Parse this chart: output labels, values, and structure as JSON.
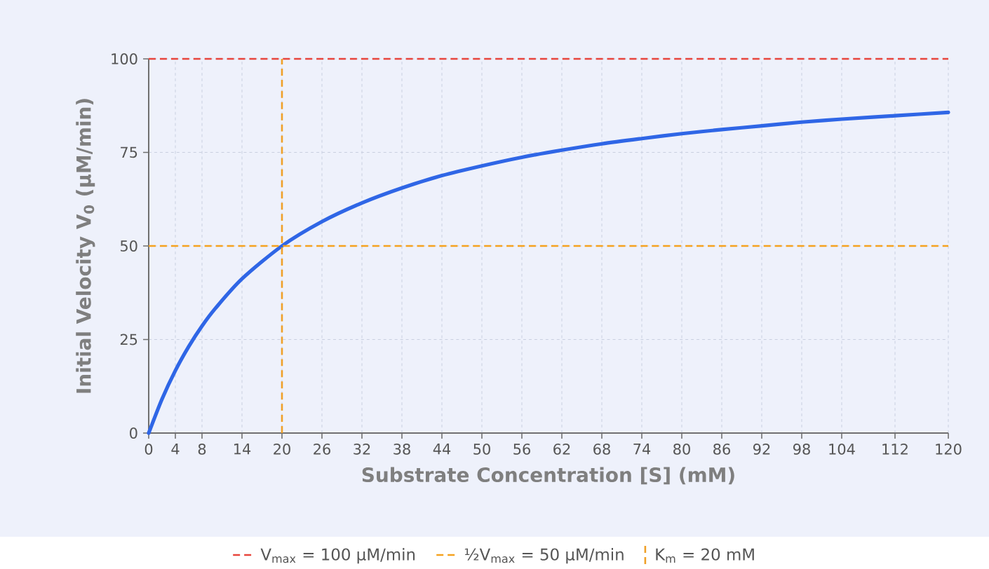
{
  "chart_data": {
    "type": "line",
    "xlabel": "Substrate Concentration [S] (mM)",
    "ylabel": "Initial Velocity V$_{0}$ (µM/min)",
    "x": [
      0,
      2,
      4,
      6,
      8,
      10,
      14,
      20,
      26,
      32,
      38,
      44,
      50,
      56,
      62,
      68,
      74,
      80,
      86,
      92,
      98,
      104,
      112,
      120
    ],
    "series": [
      {
        "color": "#2f66e6",
        "values": [
          0,
          9.1,
          16.7,
          23.1,
          28.6,
          33.3,
          41.2,
          50,
          56.5,
          61.5,
          65.5,
          68.8,
          71.4,
          73.7,
          75.6,
          77.3,
          78.7,
          80,
          81.1,
          82.1,
          83.1,
          83.9,
          84.8,
          85.7
        ]
      }
    ],
    "xlim": [
      0,
      120
    ],
    "ylim": [
      0,
      100
    ],
    "xticks": [
      0,
      4,
      8,
      14,
      20,
      26,
      32,
      38,
      44,
      50,
      56,
      62,
      68,
      74,
      80,
      86,
      92,
      98,
      104,
      112,
      120
    ],
    "yticks": [
      0,
      25,
      50,
      75,
      100
    ],
    "ref_lines": [
      {
        "axis": "y",
        "value": 100,
        "label": "V$_{max}$ = 100 µM/min",
        "color": "#e8453c",
        "line_style": "dashed"
      },
      {
        "axis": "y",
        "value": 50,
        "label": "½V$_{max}$ = 50 µM/min",
        "color": "#f5a21f",
        "line_style": "dashed"
      },
      {
        "axis": "x",
        "value": 20,
        "label": "K$_{m}$ = 20 mM",
        "color": "#efa028",
        "line_style": "dashed"
      }
    ],
    "grid": true,
    "legend": "bottom"
  }
}
